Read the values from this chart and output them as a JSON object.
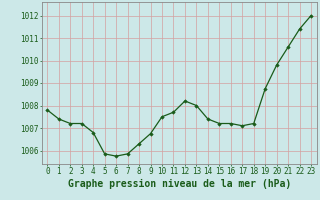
{
  "x": [
    0,
    1,
    2,
    3,
    4,
    5,
    6,
    7,
    8,
    9,
    10,
    11,
    12,
    13,
    14,
    15,
    16,
    17,
    18,
    19,
    20,
    21,
    22,
    23
  ],
  "y": [
    1007.8,
    1007.4,
    1007.2,
    1007.2,
    1006.8,
    1005.85,
    1005.75,
    1005.85,
    1006.3,
    1006.75,
    1007.5,
    1007.7,
    1008.2,
    1008.0,
    1007.4,
    1007.2,
    1007.2,
    1007.1,
    1007.2,
    1008.75,
    1009.8,
    1010.6,
    1011.4,
    1012.0
  ],
  "ylim": [
    1005.4,
    1012.6
  ],
  "yticks": [
    1006,
    1007,
    1008,
    1009,
    1010,
    1011,
    1012
  ],
  "xticks": [
    0,
    1,
    2,
    3,
    4,
    5,
    6,
    7,
    8,
    9,
    10,
    11,
    12,
    13,
    14,
    15,
    16,
    17,
    18,
    19,
    20,
    21,
    22,
    23
  ],
  "line_color": "#1a5c1a",
  "marker_color": "#1a5c1a",
  "grid_color_v": "#d4a0a0",
  "grid_color_h": "#d4a0a0",
  "bg_color": "#cce8e8",
  "xlabel": "Graphe pression niveau de la mer (hPa)",
  "xlabel_color": "#1a5c1a",
  "tick_color": "#1a5c1a",
  "axis_color": "#888888",
  "tick_fontsize": 5.5,
  "xlabel_fontsize": 7.0
}
